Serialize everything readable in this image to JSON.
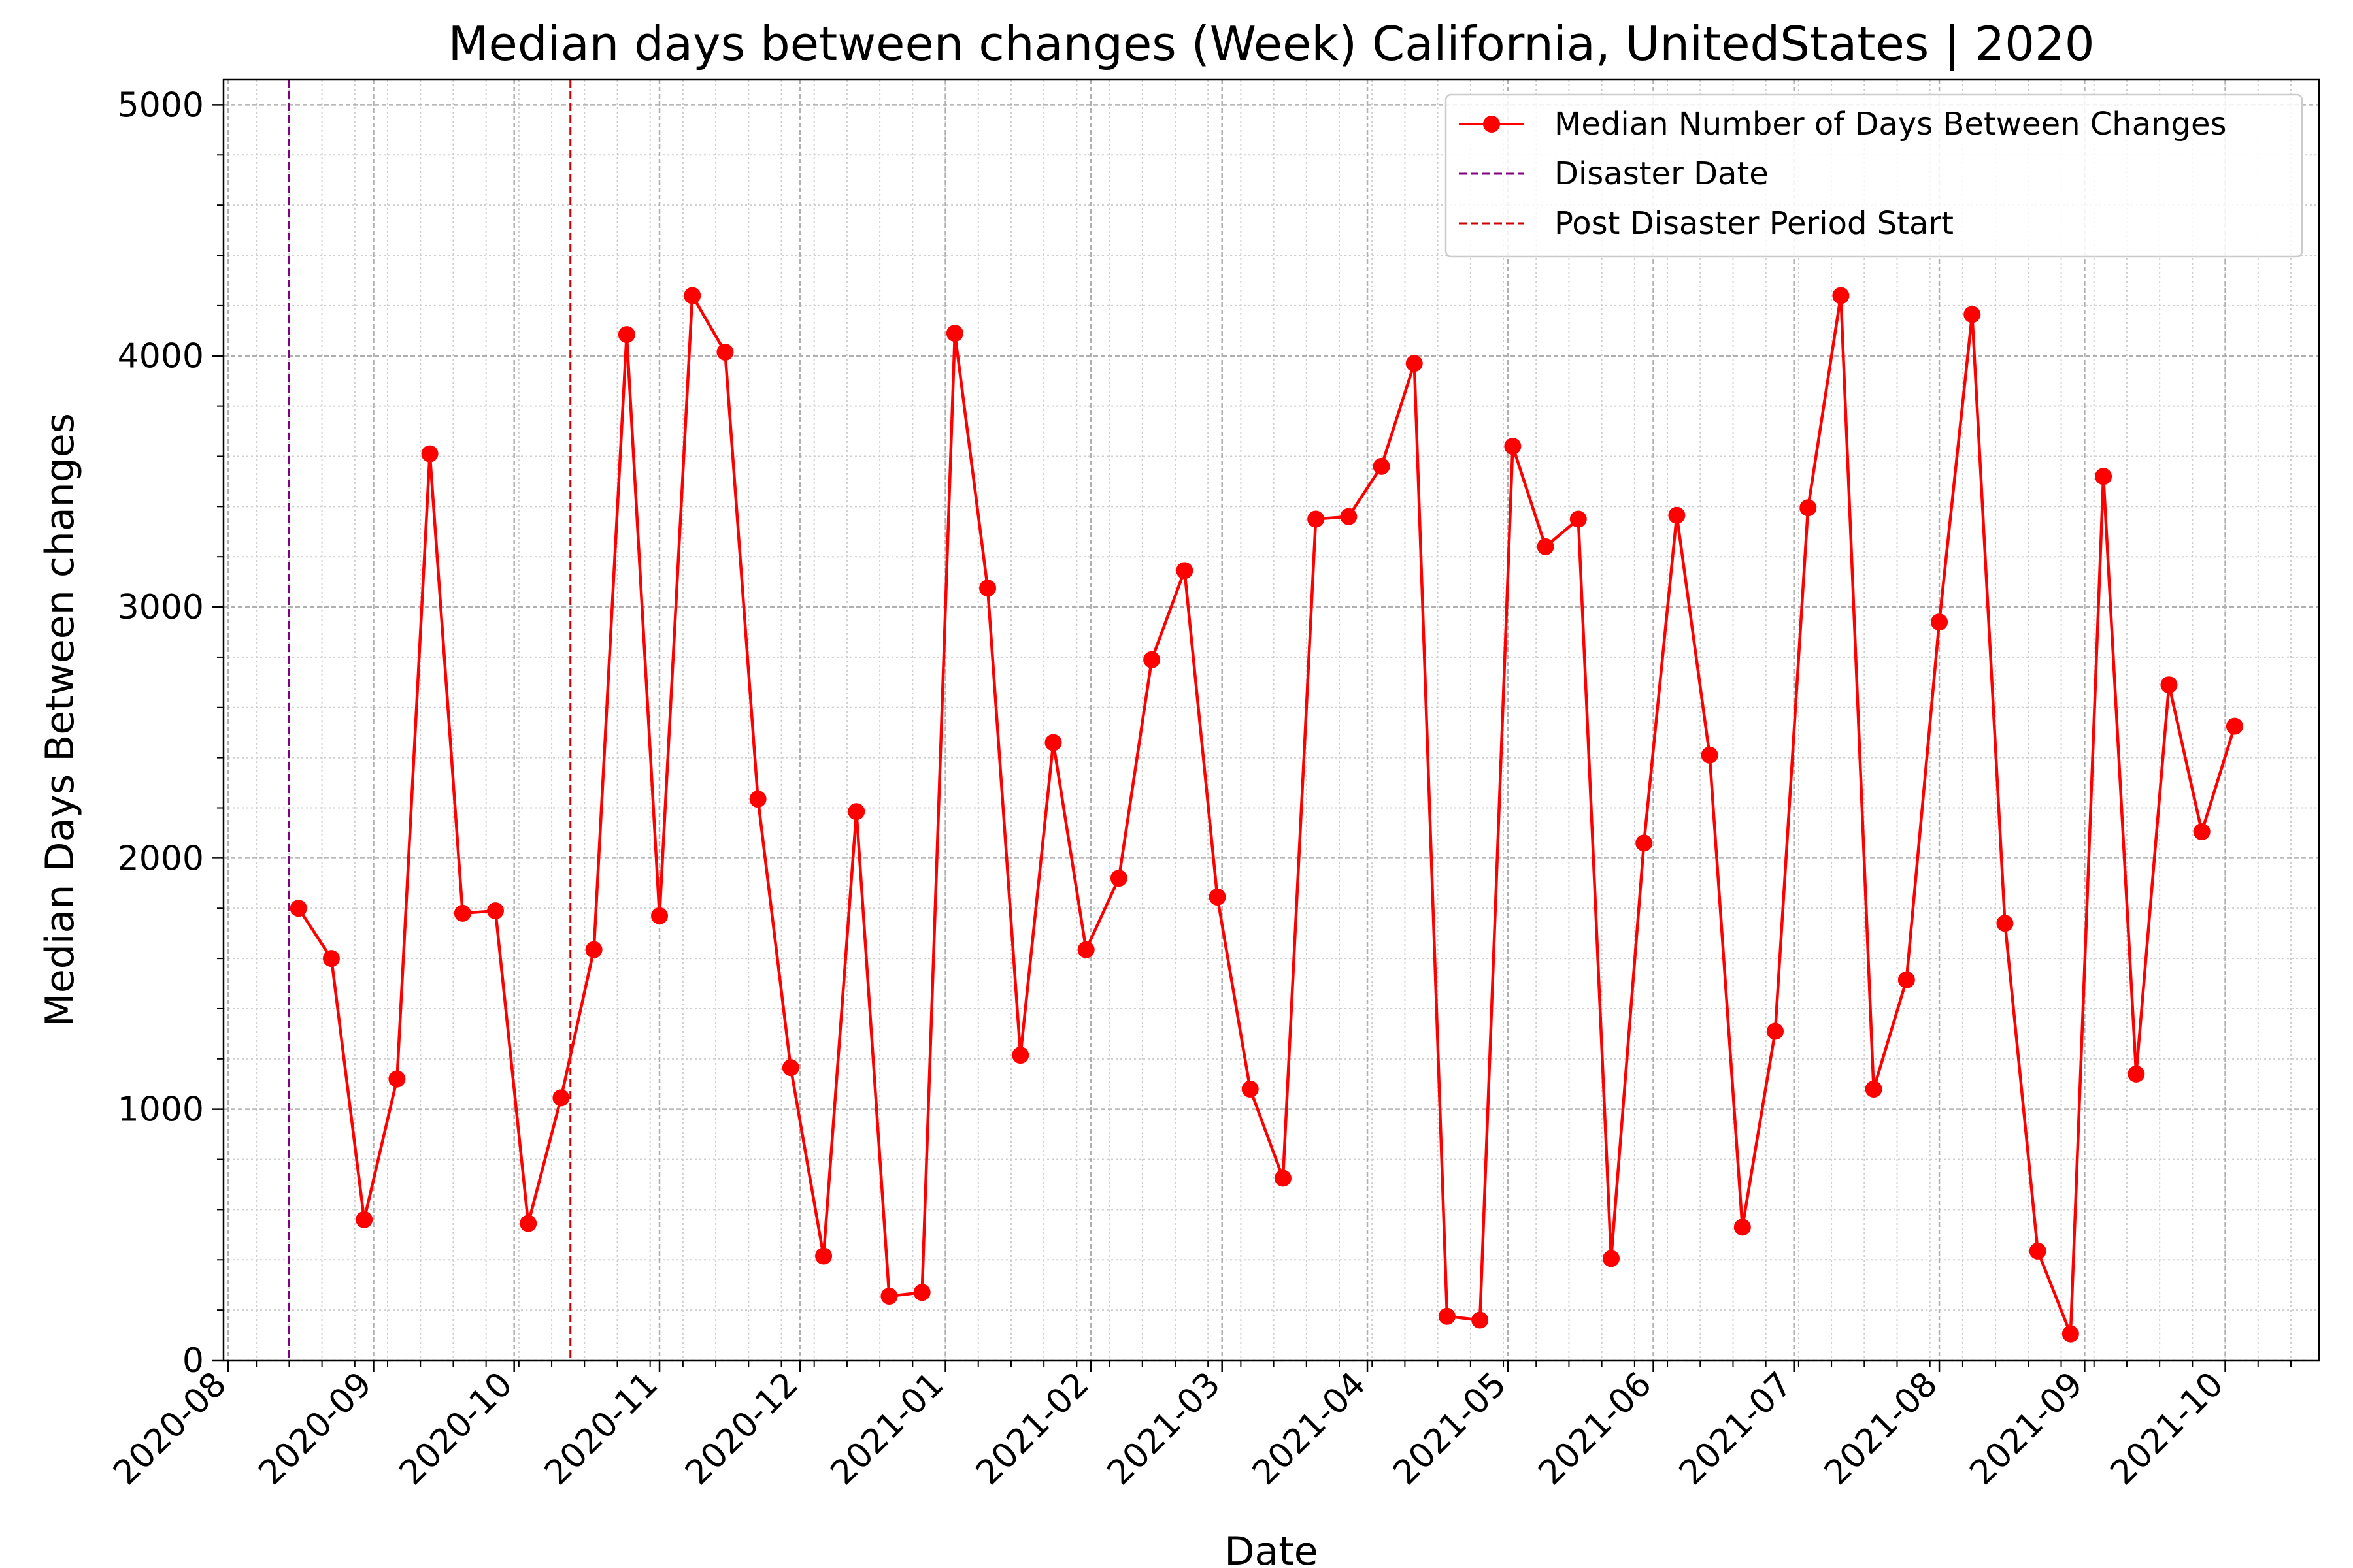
{
  "chart_data": {
    "type": "line",
    "title": "Median days between changes (Week) California, UnitedStates | 2020",
    "xlabel": "Date",
    "ylabel": "Median Days Between changes",
    "ylim": [
      0,
      5100
    ],
    "yticks": [
      0,
      1000,
      2000,
      3000,
      4000,
      5000
    ],
    "xlim": [
      "2020-07-31",
      "2021-10-21"
    ],
    "xticks": [
      "2020-08",
      "2020-09",
      "2020-10",
      "2020-11",
      "2020-12",
      "2021-01",
      "2021-02",
      "2021-03",
      "2021-04",
      "2021-05",
      "2021-06",
      "2021-07",
      "2021-08",
      "2021-09",
      "2021-10"
    ],
    "grid": true,
    "legend_position": "top-right",
    "series": [
      {
        "name": "Median Number of Days Between Changes",
        "color": "#ff0000",
        "marker": "circle",
        "x": [
          "2020-08-16",
          "2020-08-23",
          "2020-08-30",
          "2020-09-06",
          "2020-09-13",
          "2020-09-20",
          "2020-09-27",
          "2020-10-04",
          "2020-10-11",
          "2020-10-18",
          "2020-10-25",
          "2020-11-01",
          "2020-11-08",
          "2020-11-15",
          "2020-11-22",
          "2020-11-29",
          "2020-12-06",
          "2020-12-13",
          "2020-12-20",
          "2020-12-27",
          "2021-01-03",
          "2021-01-10",
          "2021-01-17",
          "2021-01-24",
          "2021-01-31",
          "2021-02-07",
          "2021-02-14",
          "2021-02-21",
          "2021-02-28",
          "2021-03-07",
          "2021-03-14",
          "2021-03-21",
          "2021-03-28",
          "2021-04-04",
          "2021-04-11",
          "2021-04-18",
          "2021-04-25",
          "2021-05-02",
          "2021-05-09",
          "2021-05-16",
          "2021-05-23",
          "2021-05-30",
          "2021-06-06",
          "2021-06-13",
          "2021-06-20",
          "2021-06-27",
          "2021-07-04",
          "2021-07-11",
          "2021-07-18",
          "2021-07-25",
          "2021-08-01",
          "2021-08-08",
          "2021-08-15",
          "2021-08-22",
          "2021-08-29",
          "2021-09-05",
          "2021-09-12",
          "2021-09-19",
          "2021-09-26",
          "2021-10-03"
        ],
        "values": [
          1800,
          1600,
          560,
          1120,
          3610,
          1780,
          1790,
          545,
          1045,
          1635,
          4085,
          1770,
          4240,
          4015,
          2235,
          1165,
          415,
          2185,
          255,
          270,
          4090,
          3075,
          1215,
          2460,
          1635,
          1920,
          2790,
          3145,
          1845,
          1080,
          725,
          3350,
          3360,
          3560,
          3970,
          175,
          160,
          3640,
          3240,
          3350,
          405,
          2060,
          3365,
          2410,
          530,
          1310,
          3395,
          4240,
          1080,
          1515,
          2940,
          4165,
          1740,
          435,
          105,
          3520,
          1140,
          2690,
          2105,
          2525
        ]
      }
    ],
    "vlines": [
      {
        "name": "Disaster Date",
        "date": "2020-08-14",
        "color": "#800080"
      },
      {
        "name": "Post Disaster Period Start",
        "date": "2020-10-13",
        "color": "#cc0000"
      }
    ]
  }
}
